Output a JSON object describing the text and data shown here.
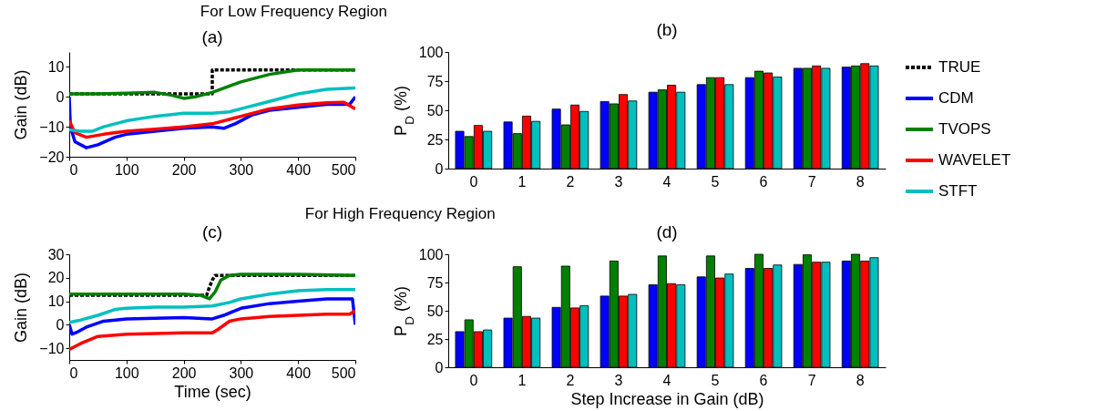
{
  "chart_data": [
    {
      "type": "line",
      "title": "(a)",
      "ylabel": "Gain (dB)",
      "annotations": [
        "For Low Frequency Region"
      ],
      "xlim": [
        0,
        500
      ],
      "xticks": [
        0,
        100,
        200,
        300,
        400,
        500
      ],
      "ylim": [
        -20,
        15
      ],
      "yticks": [
        -20,
        -10,
        0,
        10
      ],
      "grid": false,
      "legend": "right",
      "marker": "none",
      "series": [
        {
          "name": "TRUE",
          "color": "#000000",
          "line_style": "dashed",
          "x": [
            0,
            250,
            250,
            500
          ],
          "values": [
            1,
            1,
            9,
            9
          ]
        },
        {
          "name": "CDM",
          "color": "#0000ff",
          "x": [
            0,
            2,
            10,
            30,
            50,
            80,
            100,
            150,
            200,
            250,
            270,
            290,
            320,
            350,
            400,
            450,
            490,
            500
          ],
          "values": [
            0,
            -10,
            -15,
            -17,
            -16,
            -13.5,
            -12.5,
            -11.5,
            -10.5,
            -10,
            -10.5,
            -9,
            -6,
            -4.5,
            -3.5,
            -2.5,
            -2.5,
            0
          ]
        },
        {
          "name": "TVOPS",
          "color": "#008000",
          "x": [
            0,
            50,
            100,
            150,
            180,
            200,
            220,
            250,
            300,
            350,
            400,
            450,
            500
          ],
          "values": [
            1,
            1,
            1.2,
            1.5,
            0.5,
            -0.5,
            0,
            1.5,
            5,
            7.5,
            9,
            9,
            9
          ]
        },
        {
          "name": "WAVELET",
          "color": "#ff0000",
          "x": [
            0,
            10,
            30,
            60,
            100,
            150,
            200,
            250,
            300,
            350,
            400,
            450,
            480,
            500
          ],
          "values": [
            -8,
            -12,
            -13.5,
            -12.5,
            -11.5,
            -10.8,
            -10,
            -9,
            -6.5,
            -4,
            -2.7,
            -2,
            -1.8,
            -4
          ]
        },
        {
          "name": "STFT",
          "color": "#00bfbf",
          "x": [
            0,
            20,
            40,
            60,
            100,
            150,
            200,
            250,
            280,
            300,
            350,
            400,
            450,
            500
          ],
          "values": [
            -11,
            -11.5,
            -11.5,
            -10,
            -8,
            -6.5,
            -5.5,
            -5.5,
            -5,
            -4,
            -1.5,
            1,
            2.5,
            3
          ]
        }
      ]
    },
    {
      "type": "bar",
      "title": "(b)",
      "ylabel": "P$_{D}$ (%)",
      "categories": [
        "0",
        "1",
        "2",
        "3",
        "4",
        "5",
        "6",
        "7",
        "8"
      ],
      "ylim": [
        0,
        100
      ],
      "yticks": [
        0,
        25,
        50,
        75,
        100
      ],
      "grid": false,
      "series": [
        {
          "name": "CDM",
          "color": "#0000ff",
          "values": [
            32,
            40,
            51,
            57.5,
            65.5,
            72,
            78,
            86,
            87
          ]
        },
        {
          "name": "TVOPS",
          "color": "#008000",
          "values": [
            27.5,
            30,
            37.5,
            55.5,
            67.5,
            78,
            83.5,
            86,
            88
          ]
        },
        {
          "name": "WAVELET",
          "color": "#ff0000",
          "values": [
            37,
            45,
            54.5,
            63.5,
            71.5,
            78,
            82,
            88,
            90
          ]
        },
        {
          "name": "STFT",
          "color": "#00bfbf",
          "values": [
            32,
            40.5,
            49,
            58,
            65.5,
            72,
            78.5,
            86,
            88
          ]
        }
      ]
    },
    {
      "type": "line",
      "title": "(c)",
      "xlabel": "Time (sec)",
      "ylabel": "Gain (dB)",
      "annotations": [
        "For High Frequency Region"
      ],
      "xlim": [
        0,
        500
      ],
      "xticks": [
        0,
        100,
        200,
        300,
        400,
        500
      ],
      "ylim": [
        -15,
        30
      ],
      "yticks": [
        -10,
        0,
        10,
        20,
        30
      ],
      "grid": false,
      "marker": "none",
      "series": [
        {
          "name": "TRUE",
          "color": "#000000",
          "line_style": "dashed",
          "x": [
            0,
            240,
            245,
            250,
            255,
            500
          ],
          "values": [
            12.5,
            12.5,
            16,
            19,
            21,
            21
          ]
        },
        {
          "name": "CDM",
          "color": "#0000ff",
          "x": [
            0,
            5,
            15,
            30,
            60,
            100,
            200,
            250,
            270,
            300,
            350,
            400,
            450,
            495,
            500
          ],
          "values": [
            0,
            -4,
            -3,
            -1,
            1.5,
            2.5,
            3,
            2.5,
            4,
            7,
            9,
            10,
            11,
            11,
            0
          ]
        },
        {
          "name": "TVOPS",
          "color": "#008000",
          "x": [
            0,
            200,
            230,
            245,
            255,
            265,
            280,
            300,
            400,
            500
          ],
          "values": [
            13,
            13,
            12.5,
            11,
            14,
            19,
            21,
            21.5,
            21.5,
            21
          ]
        },
        {
          "name": "WAVELET",
          "color": "#ff0000",
          "x": [
            0,
            20,
            50,
            100,
            200,
            250,
            260,
            280,
            300,
            350,
            400,
            450,
            490,
            500
          ],
          "values": [
            -10.5,
            -8,
            -5,
            -4,
            -3.5,
            -3.5,
            -2,
            1.5,
            2.5,
            3.5,
            4,
            4.5,
            4.5,
            6
          ]
        },
        {
          "name": "STFT",
          "color": "#00bfbf",
          "x": [
            0,
            20,
            50,
            80,
            100,
            150,
            200,
            250,
            280,
            300,
            350,
            400,
            450,
            500
          ],
          "values": [
            1,
            2,
            4,
            6.5,
            7,
            7.5,
            7.5,
            8,
            9.5,
            11,
            13,
            14.5,
            15,
            15
          ]
        }
      ]
    },
    {
      "type": "bar",
      "title": "(d)",
      "xlabel": "Step Increase in Gain (dB)",
      "ylabel": "P$_{D}$ (%)",
      "categories": [
        "0",
        "1",
        "2",
        "3",
        "4",
        "5",
        "6",
        "7",
        "8"
      ],
      "ylim": [
        0,
        100
      ],
      "yticks": [
        0,
        25,
        50,
        75,
        100
      ],
      "grid": false,
      "series": [
        {
          "name": "CDM",
          "color": "#0000ff",
          "values": [
            31.5,
            43.5,
            53,
            63,
            73,
            80,
            87.5,
            91,
            94
          ]
        },
        {
          "name": "TVOPS",
          "color": "#008000",
          "values": [
            42,
            89,
            89.5,
            94,
            98.5,
            98.5,
            100,
            99.5,
            100
          ]
        },
        {
          "name": "WAVELET",
          "color": "#ff0000",
          "values": [
            31.5,
            45,
            52.5,
            63,
            74,
            79,
            87.5,
            93,
            94
          ]
        },
        {
          "name": "STFT",
          "color": "#00bfbf",
          "values": [
            33,
            43.5,
            54.5,
            64.5,
            73,
            82.5,
            90.5,
            93,
            97
          ]
        }
      ]
    }
  ]
}
